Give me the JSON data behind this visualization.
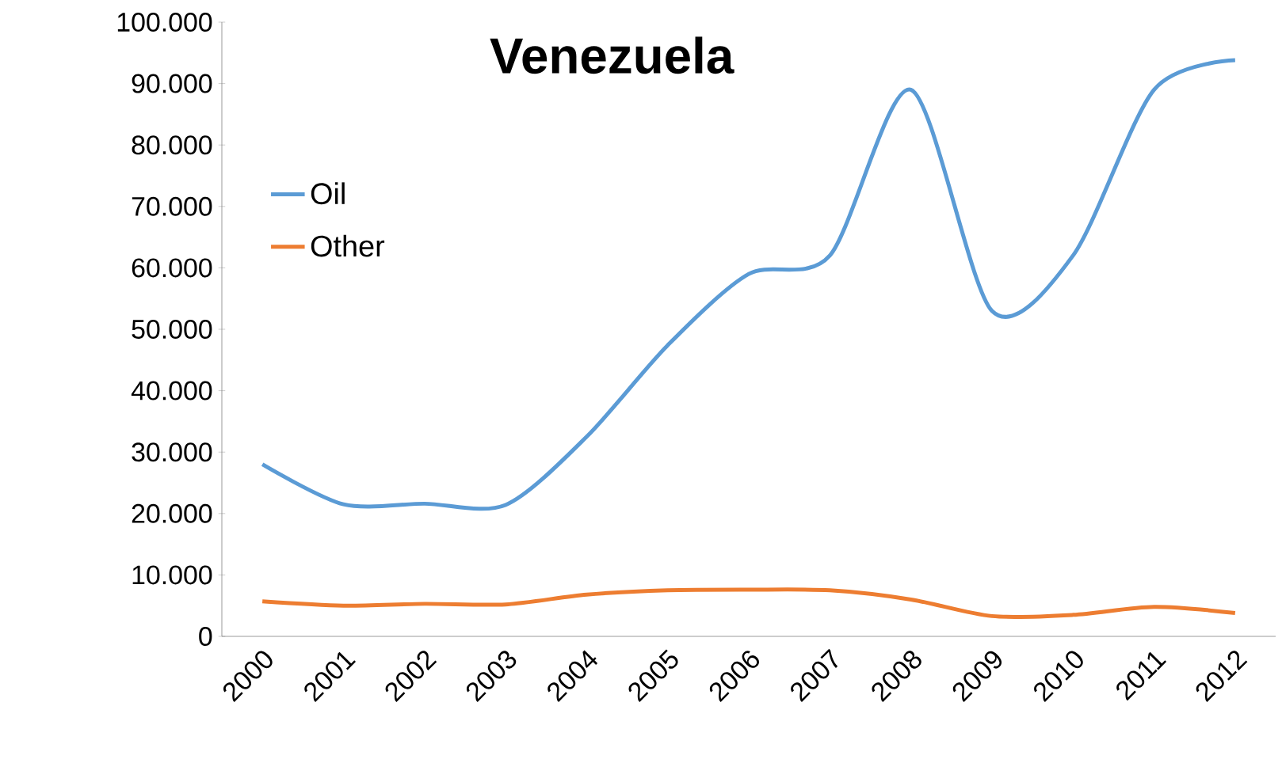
{
  "chart_data": {
    "type": "line",
    "title": "Venezuela",
    "categories": [
      "2000",
      "2001",
      "2002",
      "2003",
      "2004",
      "2005",
      "2006",
      "2007",
      "2008",
      "2009",
      "2010",
      "2011",
      "2012"
    ],
    "series": [
      {
        "name": "Oil",
        "color": "#5b9bd5",
        "values": [
          28000,
          21500,
          21600,
          21400,
          32500,
          47400,
          59000,
          62000,
          89000,
          53000,
          62000,
          89000,
          93800
        ]
      },
      {
        "name": "Other",
        "color": "#ed7d31",
        "values": [
          5700,
          5000,
          5300,
          5200,
          6800,
          7500,
          7600,
          7500,
          6000,
          3300,
          3500,
          4800,
          3800
        ]
      }
    ],
    "ylim": [
      0,
      100000
    ],
    "yticks": [
      0,
      {
        "value": 10000,
        "label": "10.000"
      },
      {
        "value": 20000,
        "label": "20.000"
      },
      {
        "value": 30000,
        "label": "30.000"
      },
      {
        "value": 40000,
        "label": "40.000"
      },
      {
        "value": 50000,
        "label": "50.000"
      },
      {
        "value": 60000,
        "label": "60.000"
      },
      {
        "value": 70000,
        "label": "70.000"
      },
      {
        "value": 80000,
        "label": "80.000"
      },
      {
        "value": 90000,
        "label": "90.000"
      },
      {
        "value": 100000,
        "label": "100.000"
      }
    ],
    "grid": false,
    "legend": "top left",
    "marker": "none",
    "line_style": "solid"
  }
}
